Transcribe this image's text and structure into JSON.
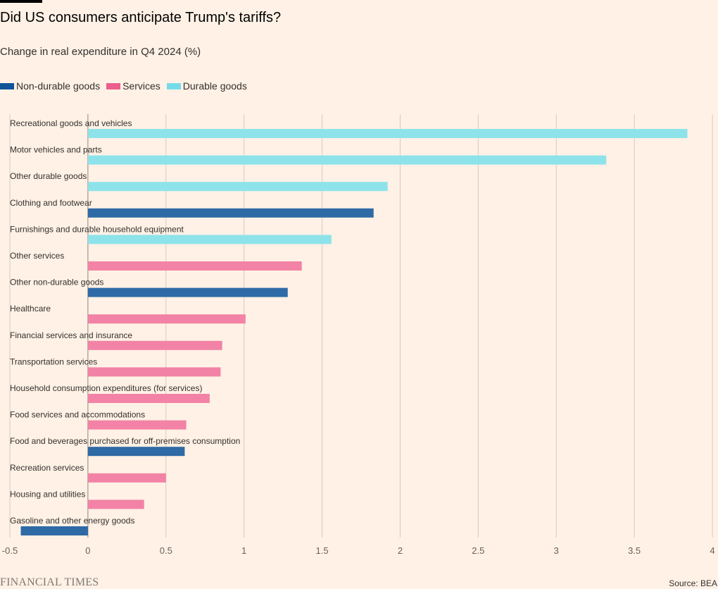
{
  "chart_data": {
    "type": "bar",
    "orientation": "horizontal",
    "title": "Did US consumers anticipate Trump's tariffs?",
    "subtitle": "Change in real expenditure in Q4 2024 (%)",
    "legend": [
      {
        "name": "Non-durable goods",
        "color": "#0f5499"
      },
      {
        "name": "Services",
        "color": "#eb5e8d"
      },
      {
        "name": "Durable goods",
        "color": "#76dbe8"
      }
    ],
    "bar_colors": {
      "Non-durable goods": "#2e6aa6",
      "Services": "#f283a6",
      "Durable goods": "#8ee3ea"
    },
    "categories": [
      "Recreational goods and vehicles",
      "Motor vehicles and parts",
      "Other durable goods",
      "Clothing and footwear",
      "Furnishings and durable household equipment",
      "Other services",
      "Other non-durable goods",
      "Healthcare",
      "Financial services and insurance",
      "Transportation services",
      "Household consumption expenditures (for services)",
      "Food services and accommodations",
      "Food and beverages purchased for off-premises consumption",
      "Recreation services",
      "Housing and utilities",
      "Gasoline and other energy goods"
    ],
    "values": [
      3.84,
      3.32,
      1.92,
      1.83,
      1.56,
      1.37,
      1.28,
      1.01,
      0.86,
      0.85,
      0.78,
      0.63,
      0.62,
      0.5,
      0.36,
      -0.43
    ],
    "groups": [
      "Durable goods",
      "Durable goods",
      "Durable goods",
      "Non-durable goods",
      "Durable goods",
      "Services",
      "Non-durable goods",
      "Services",
      "Services",
      "Services",
      "Services",
      "Services",
      "Non-durable goods",
      "Services",
      "Services",
      "Non-durable goods"
    ],
    "xlim": [
      -0.5,
      4
    ],
    "xticks": [
      -0.5,
      0,
      0.5,
      1,
      1.5,
      2,
      2.5,
      3,
      3.5,
      4
    ],
    "xtick_labels": [
      "-0.5",
      "0",
      "0.5",
      "1",
      "1.5",
      "2",
      "2.5",
      "3",
      "3.5",
      "4"
    ],
    "grid": true,
    "legend_position": "top-left"
  },
  "footer": {
    "brand": "FINANCIAL TIMES",
    "source": "Source: BEA"
  }
}
